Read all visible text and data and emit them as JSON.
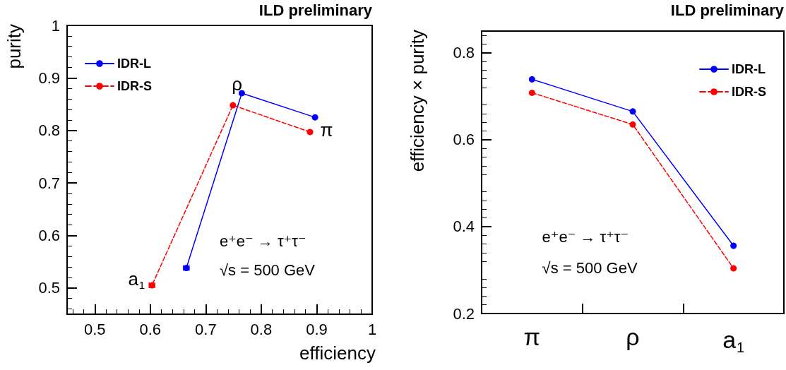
{
  "chart_data": [
    {
      "type": "line",
      "title": "ILD preliminary",
      "xlabel": "efficiency",
      "ylabel": "purity",
      "xlim": [
        0.45,
        1
      ],
      "ylim": [
        0.45,
        1
      ],
      "xticks": [
        0.5,
        0.6,
        0.7,
        0.8,
        0.9,
        1
      ],
      "yticks": [
        0.5,
        0.6,
        0.7,
        0.8,
        0.9,
        1
      ],
      "grid": false,
      "legend": "top left",
      "marker": "circle",
      "series": [
        {
          "name": "IDR-L",
          "color": "#0000ff",
          "line_style": "solid",
          "x": [
            0.897,
            0.765,
            0.665
          ],
          "values": [
            0.825,
            0.871,
            0.538
          ],
          "xerrors": [
            null,
            null,
            0.005
          ],
          "errors": [
            null,
            null,
            0.005
          ]
        },
        {
          "name": "IDR-S",
          "color": "#ff0000",
          "line_style": "dashed",
          "x": [
            0.888,
            0.749,
            0.603
          ],
          "values": [
            0.797,
            0.848,
            0.505
          ],
          "xerrors": [
            null,
            null,
            0.005
          ],
          "errors": [
            null,
            null,
            0.005
          ]
        }
      ],
      "annotations": [
        "π",
        "ρ",
        "a$_{1}$",
        "e⁺e⁻ → τ⁺τ⁻",
        "√s = 500 GeV"
      ]
    },
    {
      "type": "line",
      "title": "ILD preliminary",
      "ylabel": "efficiency × purity",
      "categories": [
        "π",
        "ρ",
        "a$_{1}$"
      ],
      "ylim": [
        0.2,
        0.85
      ],
      "yticks": [
        0.2,
        0.4,
        0.6,
        0.8
      ],
      "grid": false,
      "legend": "top right",
      "marker": "circle",
      "series": [
        {
          "name": "IDR-L",
          "color": "#0000ff",
          "line_style": "solid",
          "values": [
            0.739,
            0.665,
            0.356
          ]
        },
        {
          "name": "IDR-S",
          "color": "#ff0000",
          "line_style": "dashed",
          "values": [
            0.708,
            0.635,
            0.304
          ]
        }
      ],
      "annotations": [
        "e⁺e⁻ → τ⁺τ⁻",
        "√s = 500 GeV"
      ]
    }
  ]
}
